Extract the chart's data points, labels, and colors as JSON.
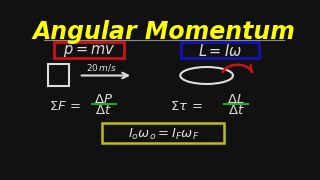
{
  "background_color": "#111111",
  "title": "Angular Momentum",
  "title_color": "#FFFF00",
  "title_fontsize": 17,
  "line_color": "#AAAAAA",
  "box_p_color": "#CC1111",
  "box_L_color": "#1111BB",
  "box_conserve_color": "#BBBB22",
  "fraction_line_color": "#22AA22",
  "white": "#DDDDDD",
  "red_arrow_color": "#CC1111",
  "sep_line_color": "#888888"
}
